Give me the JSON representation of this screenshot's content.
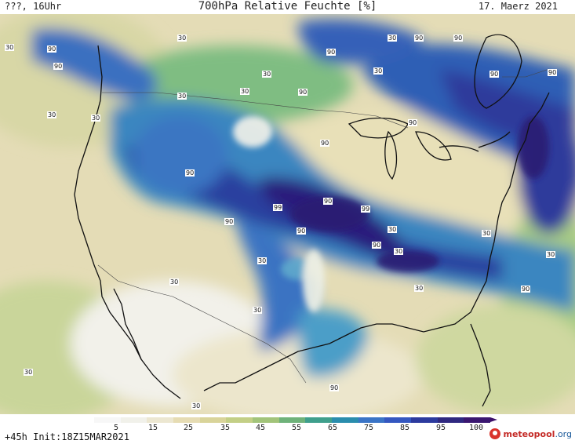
{
  "header": {
    "left": "???, 16Uhr",
    "title": "700hPa Relative Feuchte [%]",
    "date": "17. Maerz 2021"
  },
  "footer": {
    "init": "+45h Init:18Z15MAR2021",
    "brand_name": "meteopool",
    "brand_tld": ".org"
  },
  "colorbar": {
    "colors": [
      "#f7f7f7",
      "#f1f1ea",
      "#ece7d1",
      "#e6dcb3",
      "#d9d49a",
      "#c3cf86",
      "#a2c47a",
      "#6fb27a",
      "#3f9f8c",
      "#2a8dad",
      "#3a74c6",
      "#3457c0",
      "#2c3a9e",
      "#2f2880",
      "#3a1770"
    ],
    "ticks": [
      "5",
      "15",
      "25",
      "35",
      "45",
      "55",
      "65",
      "75",
      "85",
      "95",
      "100"
    ]
  },
  "map_labels": [
    "30",
    "90",
    "90",
    "30",
    "30",
    "30",
    "30",
    "90",
    "90",
    "30",
    "90",
    "90",
    "30",
    "90",
    "90",
    "30",
    "30",
    "90",
    "90",
    "90",
    "90",
    "99",
    "90",
    "99",
    "90",
    "30",
    "90",
    "90",
    "30",
    "30",
    "30",
    "30",
    "30",
    "30",
    "90",
    "30",
    "90",
    "30",
    "30"
  ],
  "icons": {
    "logo": "meteopool-logo-icon"
  }
}
